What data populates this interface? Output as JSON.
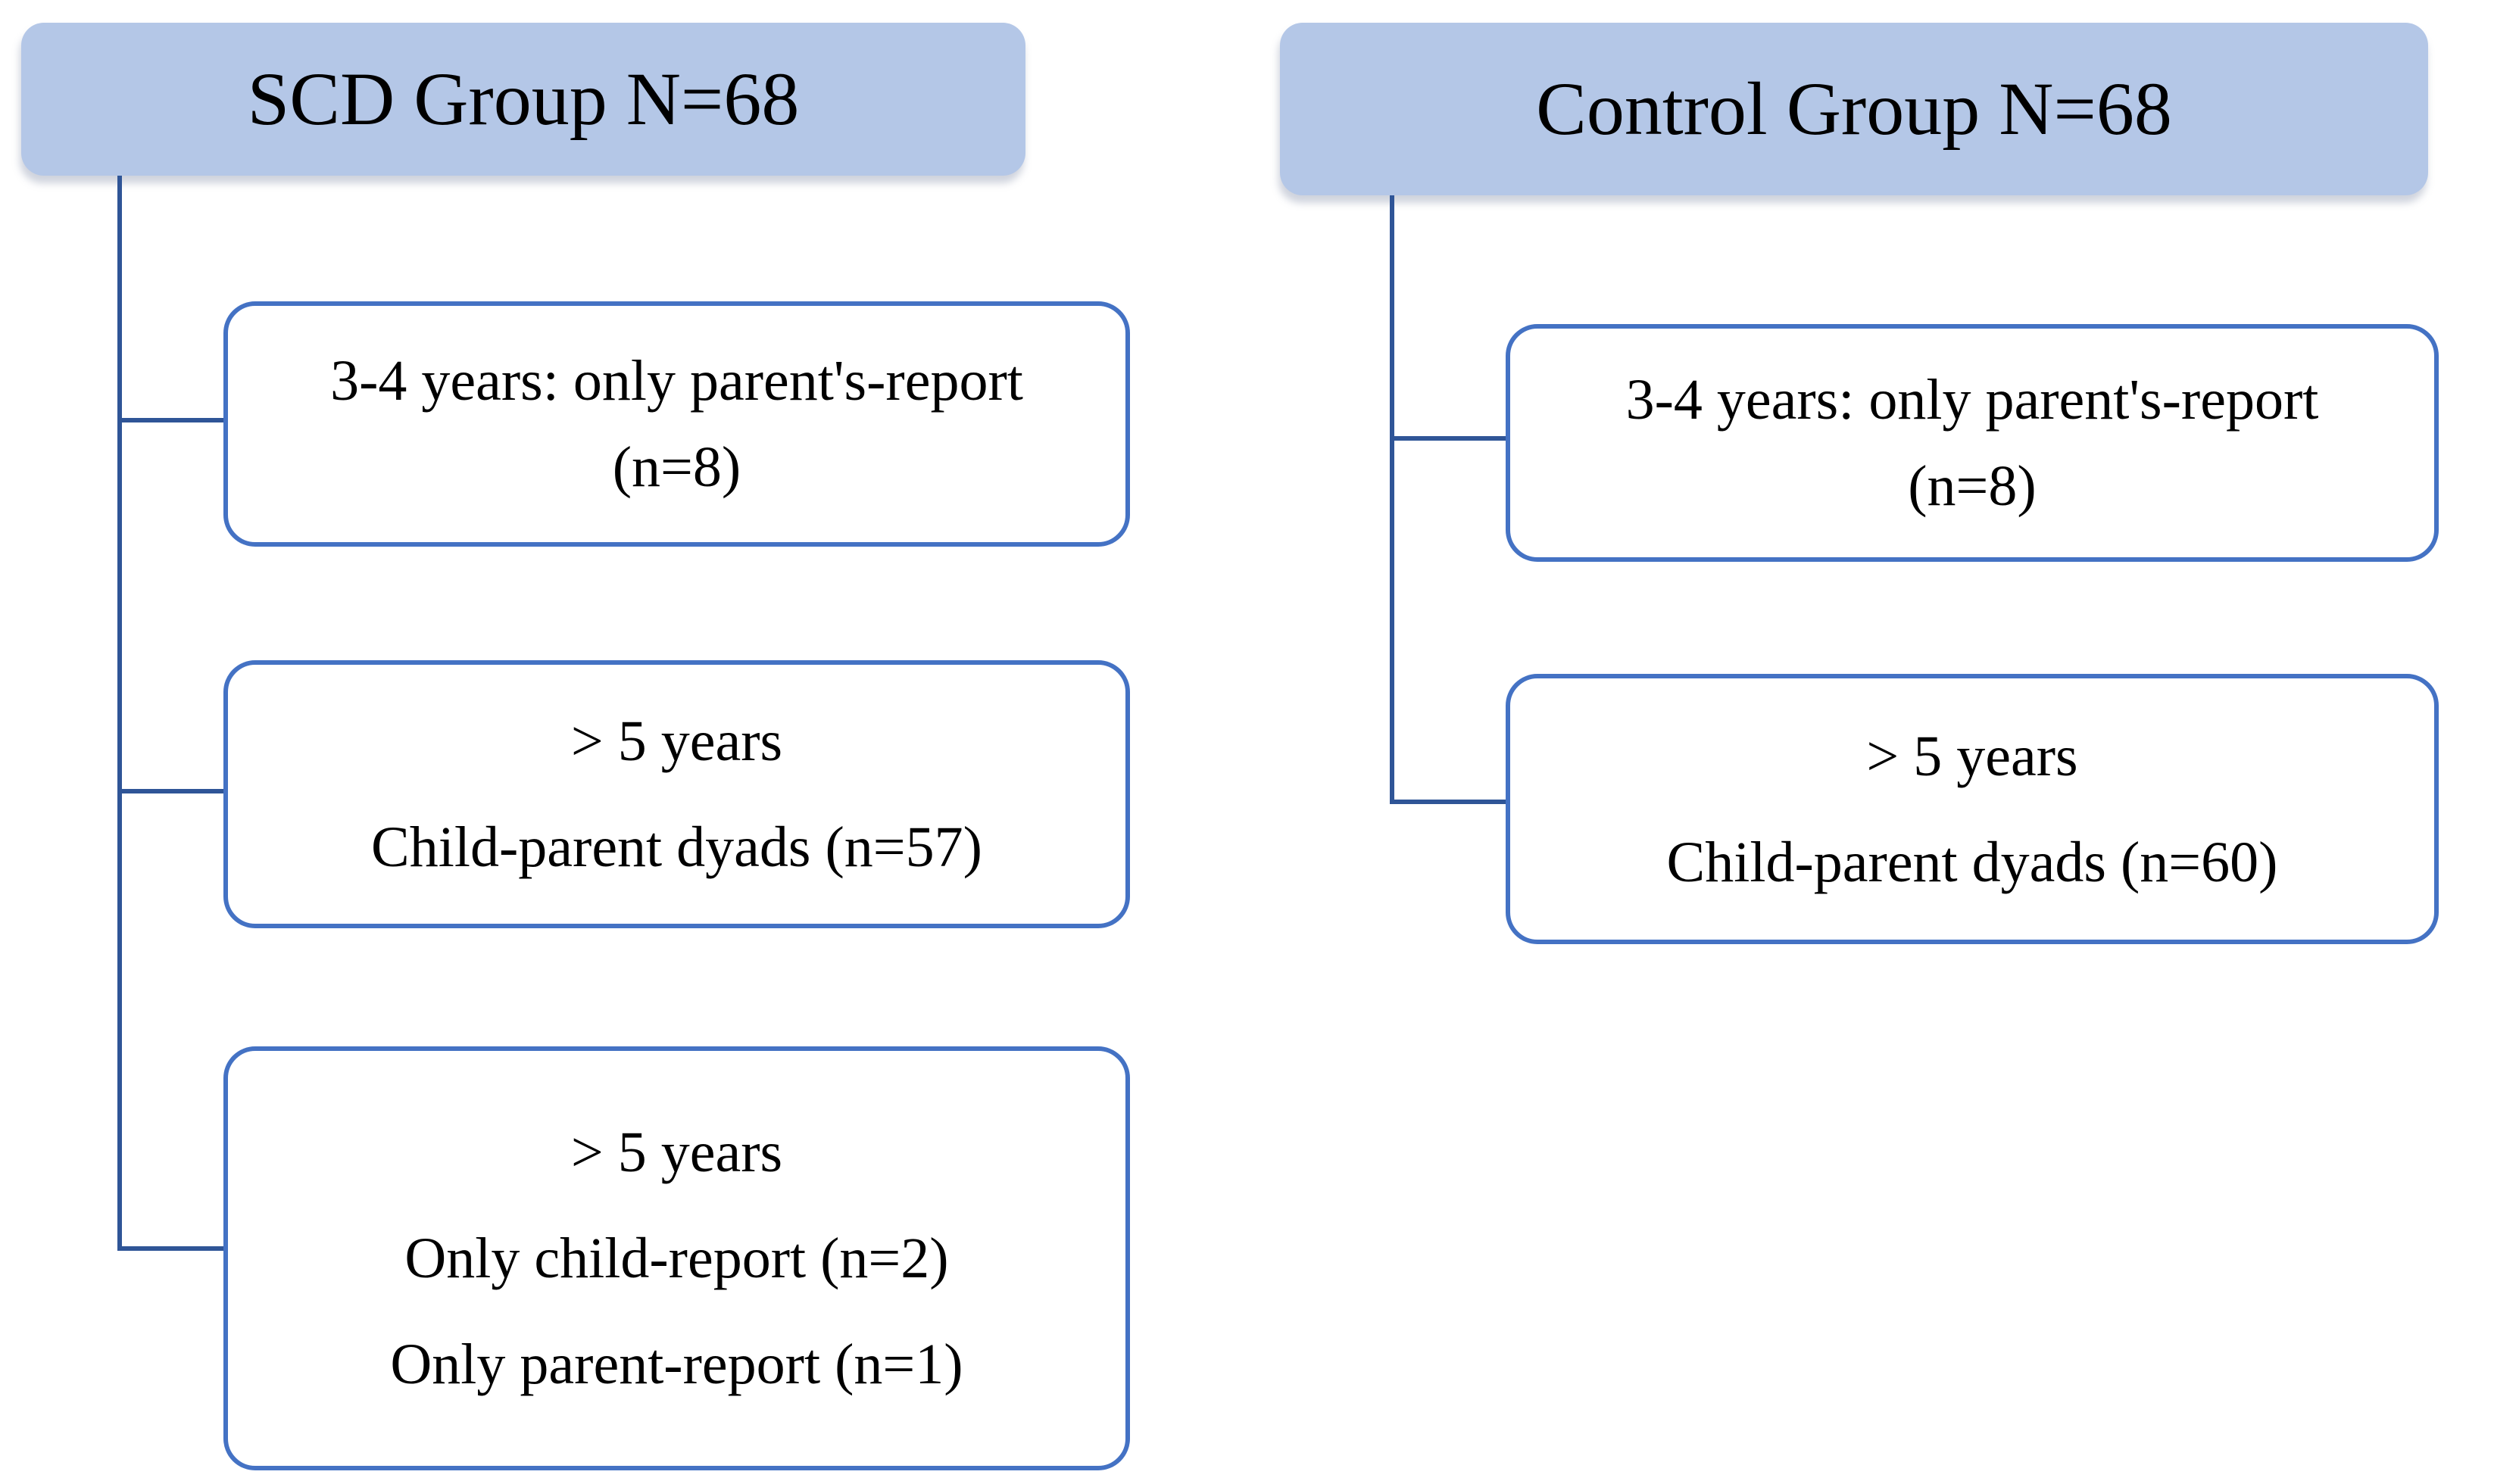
{
  "diagram": {
    "colors": {
      "header_fill": "#B4C7E7",
      "connector": "#2F5597",
      "box_border": "#4472C4",
      "text": "#000000"
    },
    "columns": [
      {
        "id": "scd",
        "header": "SCD Group N=68",
        "boxes": [
          {
            "lines": [
              "3-4 years: only parent's-report",
              "(n=8)"
            ]
          },
          {
            "lines": [
              "> 5 years",
              "Child-parent dyads (n=57)"
            ]
          },
          {
            "lines": [
              "> 5 years",
              "Only child-report (n=2)",
              "Only parent-report (n=1)"
            ]
          }
        ]
      },
      {
        "id": "control",
        "header": "Control Group N=68",
        "boxes": [
          {
            "lines": [
              "3-4 years: only parent's-report",
              "(n=8)"
            ]
          },
          {
            "lines": [
              "> 5 years",
              "Child-parent dyads (n=60)"
            ]
          }
        ]
      }
    ]
  }
}
